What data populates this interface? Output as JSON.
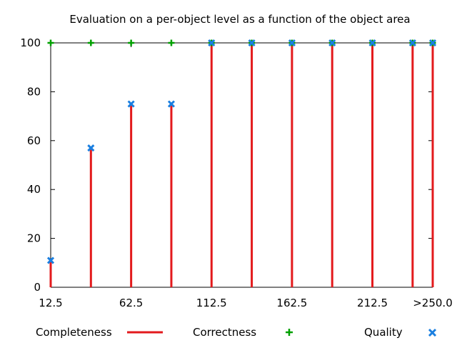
{
  "chart_data": {
    "type": "impulse-scatter",
    "title": "Evaluation on a per-object level as a function of the object area",
    "xlabel": "",
    "ylabel": "",
    "x": [
      12.5,
      37.5,
      62.5,
      87.5,
      112.5,
      137.5,
      162.5,
      187.5,
      212.5,
      237.5,
      250
    ],
    "x_tick_values": [
      12.5,
      62.5,
      112.5,
      162.5,
      212.5,
      250
    ],
    "x_tick_labels": [
      "12.5",
      "62.5",
      "112.5",
      "162.5",
      "212.5",
      ">250.0"
    ],
    "xlim": [
      12.5,
      250
    ],
    "ylim": [
      0,
      100
    ],
    "y_ticks": [
      0,
      20,
      40,
      60,
      80,
      100
    ],
    "grid": false,
    "legend_position": "bottom",
    "series": [
      {
        "name": "Completeness",
        "style": "impulses",
        "color": "#e31a1c",
        "values": [
          11,
          57,
          75,
          75,
          100,
          100,
          100,
          100,
          100,
          100,
          100
        ]
      },
      {
        "name": "Correctness",
        "style": "points",
        "marker": "plus",
        "color": "#00a000",
        "values": [
          100,
          100,
          100,
          100,
          100,
          100,
          100,
          100,
          100,
          100,
          100
        ]
      },
      {
        "name": "Quality",
        "style": "points",
        "marker": "cross",
        "color": "#1a7fe0",
        "values": [
          11,
          57,
          75,
          75,
          100,
          100,
          100,
          100,
          100,
          100,
          100
        ]
      }
    ]
  }
}
